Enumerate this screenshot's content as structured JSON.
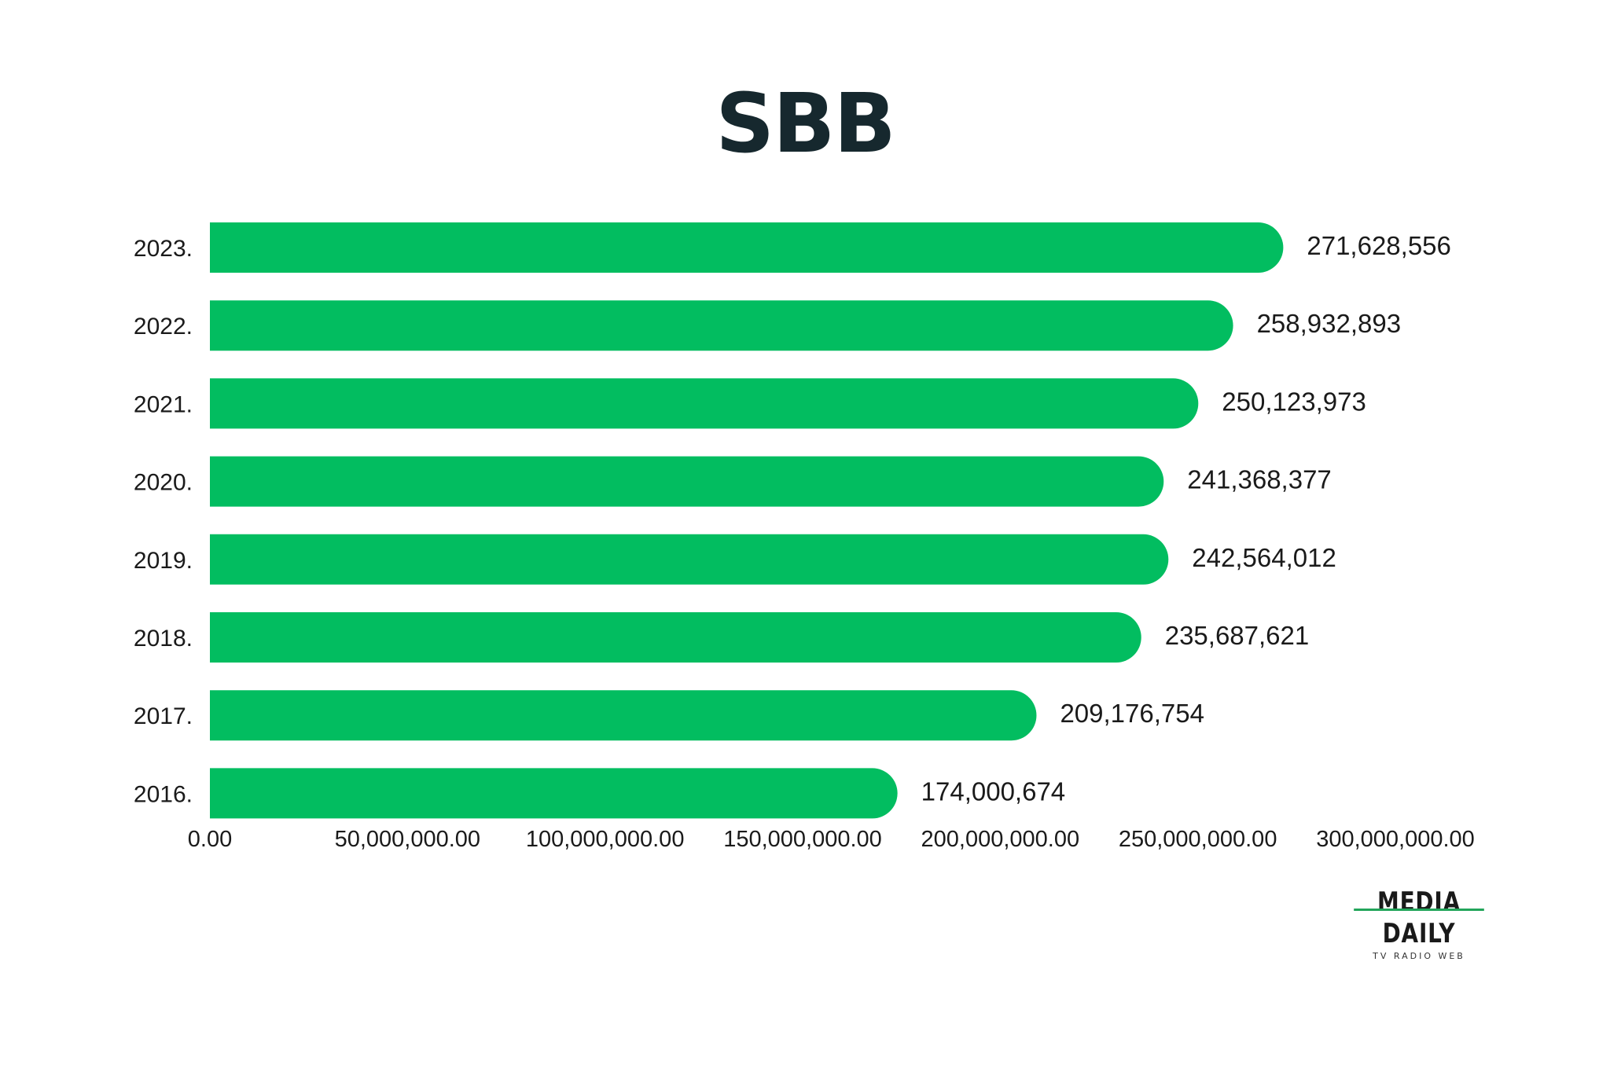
{
  "chart_data": {
    "type": "bar",
    "orientation": "horizontal",
    "title": "SBB",
    "categories": [
      "2023.",
      "2022.",
      "2021.",
      "2020.",
      "2019.",
      "2018.",
      "2017.",
      "2016."
    ],
    "values": [
      271628556,
      258932893,
      250123973,
      241368377,
      242564012,
      235687621,
      209176754,
      174000674
    ],
    "value_labels": [
      "271,628,556",
      "258,932,893",
      "250,123,973",
      "241,368,377",
      "242,564,012",
      "235,687,621",
      "209,176,754",
      "174,000,674"
    ],
    "xlim": [
      0,
      300000000
    ],
    "x_ticks": [
      0,
      50000000,
      100000000,
      150000000,
      200000000,
      250000000,
      300000000
    ],
    "x_tick_labels": [
      "0.00",
      "50,000,000.00",
      "100,000,000.00",
      "150,000,000.00",
      "200,000,000.00",
      "250,000,000.00",
      "300,000,000.00"
    ],
    "grid": false,
    "bar_color": "#02bd60",
    "xlabel": "",
    "ylabel": ""
  },
  "logo": {
    "name": "MEDIA DAILY",
    "tagline": "TV RADIO WEB"
  }
}
